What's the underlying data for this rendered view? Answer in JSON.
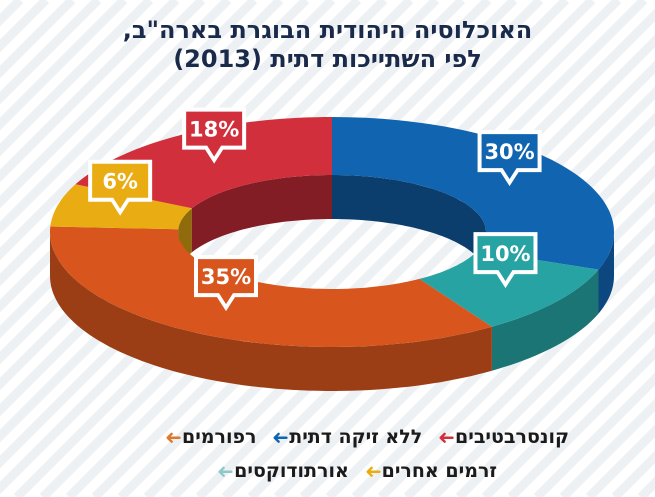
{
  "title": {
    "line1": "האוכלוסיה היהודית הבוגרת בארה\"ב,",
    "line2": "לפי השתייכות דתית (2013)"
  },
  "colors": {
    "background": "#ffffff",
    "stripes": "#eef1f4",
    "title": "#1a2a4a"
  },
  "chart_data": {
    "type": "pie",
    "style": "3d-donut",
    "start_angle_deg": -90,
    "direction": "clockwise",
    "slices": [
      {
        "key": "no_religion",
        "label": "ללא זיקה דתית",
        "value": 30,
        "display": "30%",
        "color": "#1164b0"
      },
      {
        "key": "other",
        "label": "אורתודוקסים",
        "value": 10,
        "display": "10%",
        "color": "#27a3a3"
      },
      {
        "key": "reform",
        "label": "רפורמים",
        "value": 35,
        "display": "35%",
        "color": "#d8561d"
      },
      {
        "key": "orthodox",
        "label": "זרמים אחרים",
        "value": 6,
        "display": "6%",
        "color": "#e9ac12"
      },
      {
        "key": "conservative",
        "label": "קונסרבטיבים",
        "value": 18,
        "display": "18%",
        "color": "#d22f3c"
      }
    ]
  },
  "legend": {
    "rows": [
      [
        {
          "label": "קונסרבטיבים",
          "color": "#d22f3c"
        },
        {
          "label": "ללא זיקה דתית",
          "color": "#1164b0"
        },
        {
          "label": "רפורמים",
          "color": "#e0782a"
        }
      ],
      [
        {
          "label": "זרמים אחרים",
          "color": "#e9ac12"
        },
        {
          "label": "אורתודוקסים",
          "color": "#8fc9c7"
        }
      ]
    ],
    "arrow": "➜"
  }
}
